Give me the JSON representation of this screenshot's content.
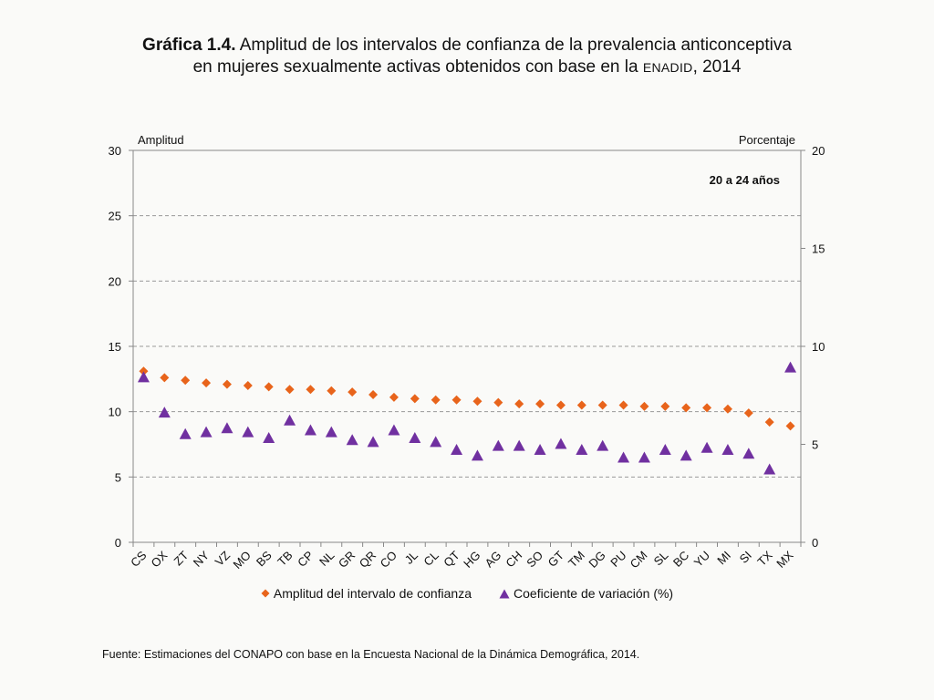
{
  "title": {
    "bold": "Gráfica 1.4.",
    "line1_rest": " Amplitud de los intervalos de confianza de la prevalencia anticonceptiva",
    "line2_pre": "en mujeres sexualmente activas obtenidos con base en la ",
    "line2_sc": "ENADID",
    "line2_post": ", 2014"
  },
  "source": "Fuente: Estimaciones del CONAPO con base en la Encuesta Nacional de la Dinámica Demográfica, 2014.",
  "colors": {
    "amplitud": "#e8641b",
    "coeficiente": "#7030a0",
    "grid": "#999999",
    "axis": "#888888"
  },
  "chart_data": {
    "type": "scatter",
    "annotation": "20 a 24 años",
    "categories": [
      "CS",
      "OX",
      "ZT",
      "NY",
      "VZ",
      "MO",
      "BS",
      "TB",
      "CP",
      "NL",
      "GR",
      "QR",
      "CO",
      "JL",
      "CL",
      "QT",
      "HG",
      "AG",
      "CH",
      "SO",
      "GT",
      "TM",
      "DG",
      "PU",
      "CM",
      "SL",
      "BC",
      "YU",
      "MI",
      "SI",
      "TX",
      "MX"
    ],
    "left_axis": {
      "label": "Amplitud",
      "min": 0,
      "max": 30,
      "ticks": [
        0,
        5,
        10,
        15,
        20,
        25,
        30
      ]
    },
    "right_axis": {
      "label": "Porcentaje",
      "min": 0,
      "max": 20,
      "ticks": [
        0,
        5,
        10,
        15,
        20
      ]
    },
    "grid": true,
    "series": [
      {
        "name": "Amplitud del intervalo de confianza",
        "axis": "left",
        "marker": "diamond",
        "values": [
          13.1,
          12.6,
          12.4,
          12.2,
          12.1,
          12.0,
          11.9,
          11.7,
          11.7,
          11.6,
          11.5,
          11.3,
          11.1,
          11.0,
          10.9,
          10.9,
          10.8,
          10.7,
          10.6,
          10.6,
          10.5,
          10.5,
          10.5,
          10.5,
          10.4,
          10.4,
          10.3,
          10.3,
          10.2,
          9.9,
          9.2,
          8.9
        ]
      },
      {
        "name": "Coeficiente de variación (%)",
        "axis": "right",
        "marker": "triangle",
        "values": [
          8.4,
          6.6,
          5.5,
          5.6,
          5.8,
          5.6,
          5.3,
          6.2,
          5.7,
          5.6,
          5.2,
          5.1,
          5.7,
          5.3,
          5.1,
          4.7,
          4.4,
          4.9,
          4.9,
          4.7,
          5.0,
          4.7,
          4.9,
          4.3,
          4.3,
          4.7,
          4.4,
          4.8,
          4.7,
          4.5,
          3.7,
          8.9
        ]
      }
    ]
  }
}
